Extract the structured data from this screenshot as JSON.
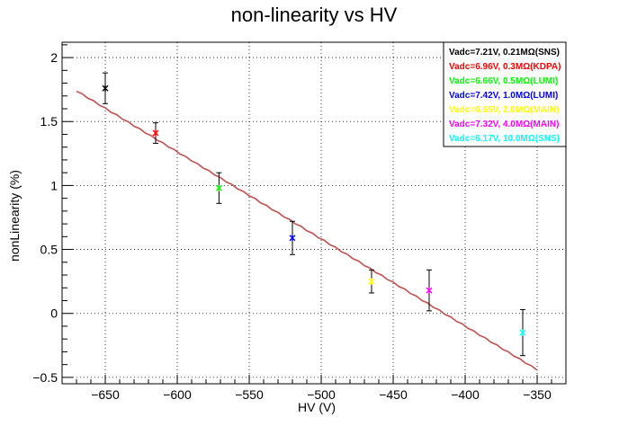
{
  "chart_data": {
    "type": "scatter",
    "title": "non-linearity vs HV",
    "xlabel": "HV (V)",
    "ylabel": "nonLinearity (%)",
    "xlim": [
      -680,
      -330
    ],
    "ylim": [
      -0.55,
      2.12
    ],
    "xticks": [
      -650,
      -600,
      -550,
      -500,
      -450,
      -400,
      -350
    ],
    "xtick_labels": [
      "−650",
      "−600",
      "−550",
      "−500",
      "−450",
      "−400",
      "−350"
    ],
    "yticks": [
      -0.5,
      0,
      0.5,
      1,
      1.5,
      2
    ],
    "ytick_labels": [
      "−0.5",
      "0",
      "0.5",
      "1",
      "1.5",
      "2"
    ],
    "grid": true,
    "legend_position": "top-right",
    "series": [
      {
        "name": "Vadc=7.21V, 0.21MΩ(SNS)",
        "color": "#000000",
        "x": -650,
        "y": 1.76,
        "err": 0.12
      },
      {
        "name": "Vadc=6.96V, 0.3MΩ(KDPA)",
        "color": "#ff0000",
        "x": -615,
        "y": 1.41,
        "err": 0.08
      },
      {
        "name": "Vadc=6.66V, 0.5MΩ(LUMI)",
        "color": "#00ff00",
        "x": -571,
        "y": 0.98,
        "err": 0.12
      },
      {
        "name": "Vadc=7.42V, 1.0MΩ(LUMI)",
        "color": "#0000ff",
        "x": -520,
        "y": 0.59,
        "err": 0.13
      },
      {
        "name": "Vadc=6.65V, 2.0MΩ(MAIN)",
        "color": "#ffff00",
        "x": -465,
        "y": 0.25,
        "err": 0.09
      },
      {
        "name": "Vadc=7.32V, 4.0MΩ(MAIN)",
        "color": "#ff00ff",
        "x": -425,
        "y": 0.18,
        "err": 0.16
      },
      {
        "name": "Vadc=6.17V, 10.0MΩ(SNS)",
        "color": "#00ffff",
        "x": -360,
        "y": -0.15,
        "err": 0.18
      }
    ],
    "fit": {
      "color": "#c05050",
      "x": [
        -670,
        -350
      ],
      "y": [
        1.74,
        -0.44
      ]
    }
  }
}
